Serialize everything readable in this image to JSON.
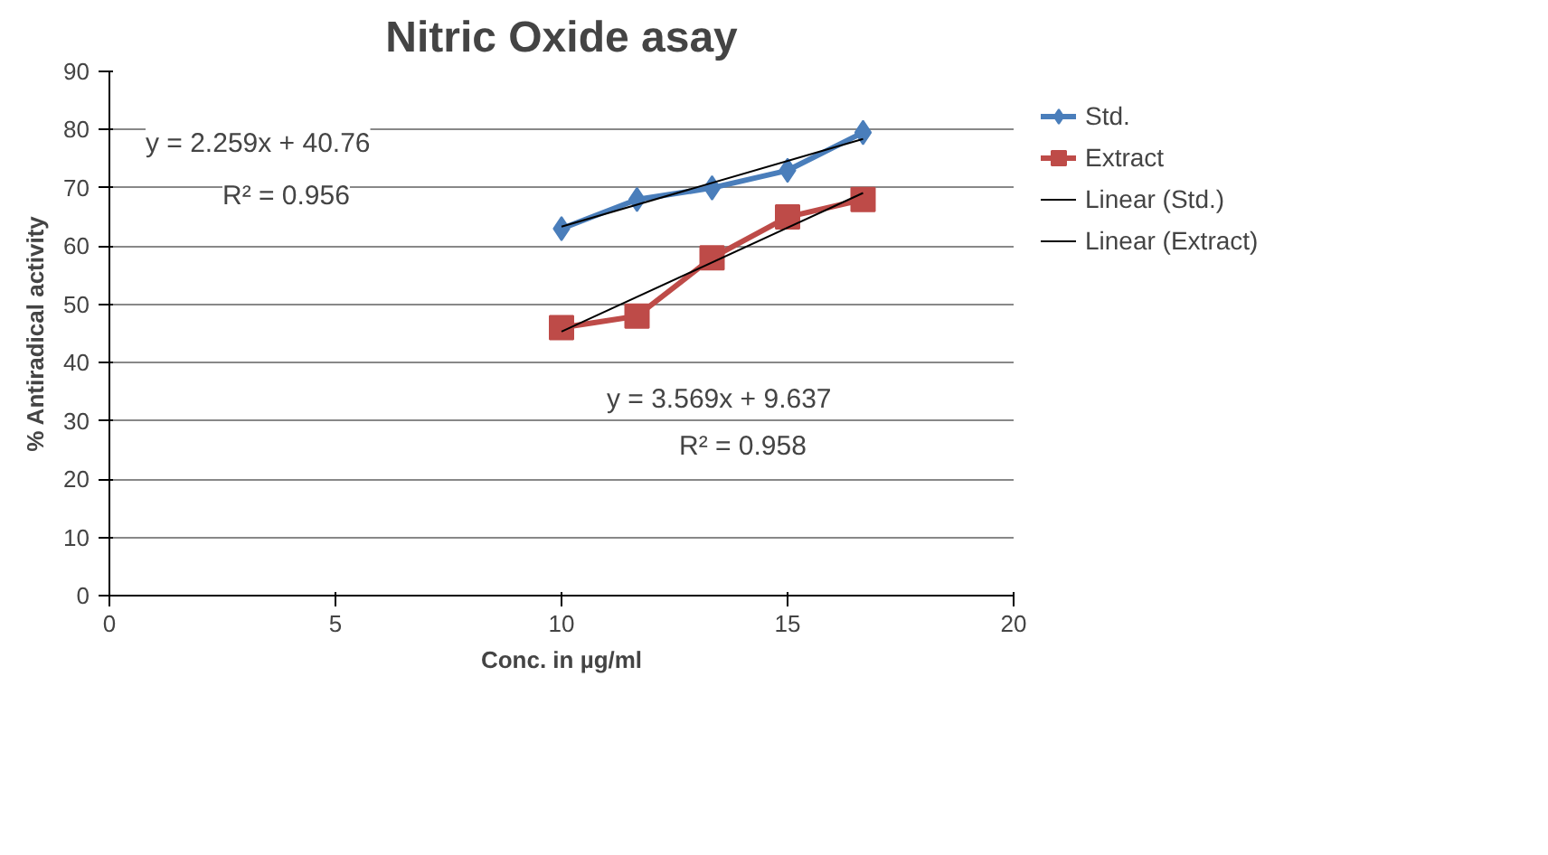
{
  "chart_data": {
    "type": "line",
    "title": "Nitric Oxide asay",
    "xlabel": "Conc. in µg/ml",
    "ylabel": "% Antiradical activity",
    "xlim": [
      0,
      20
    ],
    "xticks": [
      0,
      5,
      10,
      15,
      20
    ],
    "ylim": [
      0,
      90
    ],
    "yticks": [
      0,
      10,
      20,
      30,
      40,
      50,
      60,
      70,
      80,
      90
    ],
    "grid": "y",
    "legend": "right",
    "series": [
      {
        "name": "Std.",
        "color": "#4a7ebb",
        "marker": "diamond",
        "x": [
          10,
          11.67,
          13.33,
          15,
          16.67
        ],
        "values": [
          63,
          68,
          70,
          73,
          79.5
        ]
      },
      {
        "name": "Extract",
        "color": "#be4b48",
        "marker": "square",
        "x": [
          10,
          11.67,
          13.33,
          15,
          16.67
        ],
        "values": [
          46,
          48,
          58,
          65,
          68
        ]
      },
      {
        "name": "Linear (Std.)",
        "color": "#000000",
        "marker": "none",
        "x": [
          10,
          16.67
        ],
        "values": [
          63.35,
          78.4
        ]
      },
      {
        "name": "Linear (Extract)",
        "color": "#000000",
        "marker": "none",
        "x": [
          10,
          16.67
        ],
        "values": [
          45.33,
          69.13
        ]
      }
    ],
    "annotations": [
      "y = 2.259x + 40.76",
      "R² = 0.956",
      "y = 3.569x + 9.637",
      "R² = 0.958"
    ]
  }
}
